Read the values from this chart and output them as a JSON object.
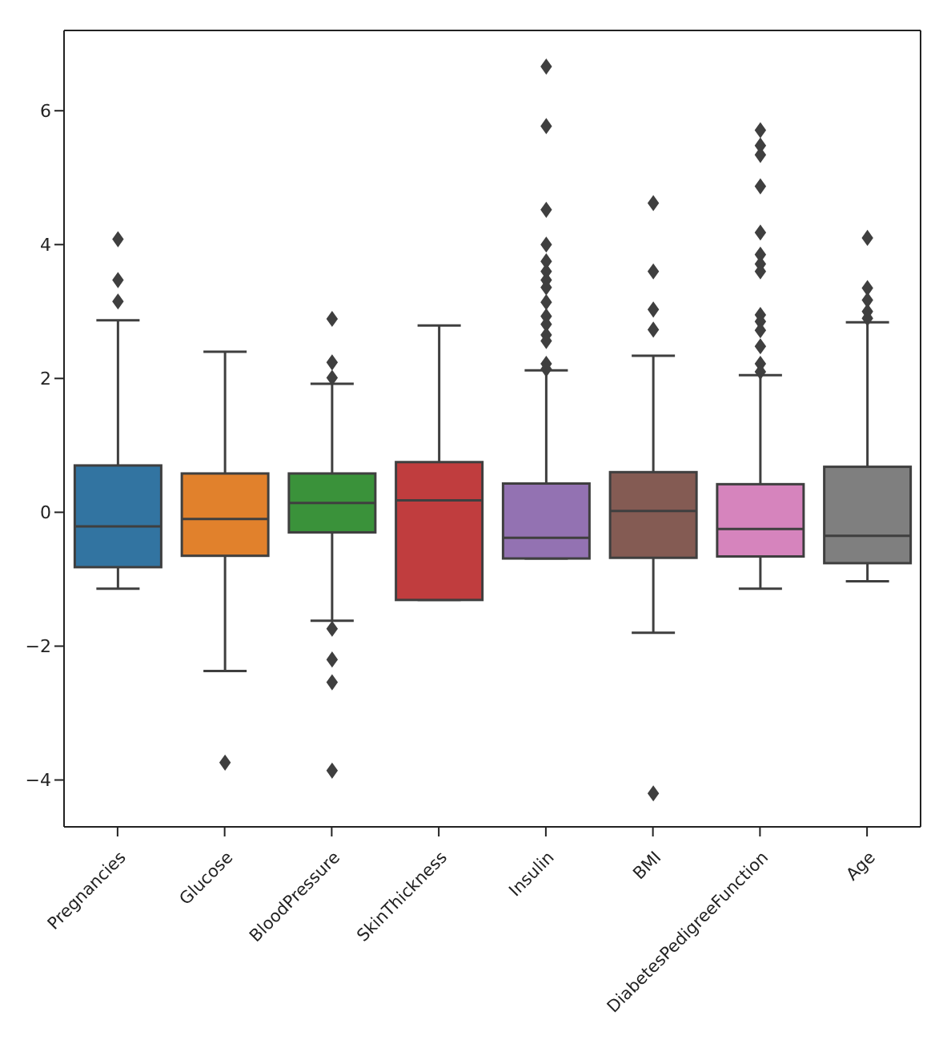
{
  "chart_data": {
    "type": "box",
    "categories": [
      "Pregnancies",
      "Glucose",
      "BloodPressure",
      "SkinThickness",
      "Insulin",
      "BMI",
      "DiabetesPedigreeFunction",
      "Age"
    ],
    "colors": [
      "#3274a1",
      "#e1812c",
      "#3a923a",
      "#c03d3e",
      "#9372b2",
      "#845b53",
      "#d684bd",
      "#7f7f7f"
    ],
    "boxes": [
      {
        "low": -1.14,
        "q1": -0.82,
        "median": -0.21,
        "q3": 0.7,
        "high": 2.87,
        "outliers": [
          4.08,
          3.47,
          3.15
        ]
      },
      {
        "low": -2.37,
        "q1": -0.65,
        "median": -0.1,
        "q3": 0.58,
        "high": 2.4,
        "outliers": [
          -3.74
        ]
      },
      {
        "low": -1.62,
        "q1": -0.3,
        "median": 0.14,
        "q3": 0.58,
        "high": 1.92,
        "outliers": [
          2.89,
          2.24,
          2.01,
          -1.74,
          -2.2,
          -2.54,
          -3.86
        ]
      },
      {
        "low": -1.31,
        "q1": -1.31,
        "median": 0.18,
        "q3": 0.75,
        "high": 2.79
      },
      {
        "low": -0.69,
        "q1": -0.69,
        "median": -0.38,
        "q3": 0.43,
        "high": 2.12,
        "outliers": [
          6.66,
          5.77,
          4.52,
          4.0,
          3.75,
          3.6,
          3.47,
          3.36,
          3.14,
          2.93,
          2.81,
          2.65,
          2.56,
          2.22,
          2.14
        ]
      },
      {
        "low": -1.8,
        "q1": -0.68,
        "median": 0.02,
        "q3": 0.6,
        "high": 2.34,
        "outliers": [
          4.62,
          3.6,
          3.03,
          2.73,
          -4.2
        ]
      },
      {
        "low": -1.14,
        "q1": -0.66,
        "median": -0.25,
        "q3": 0.42,
        "high": 2.05,
        "outliers": [
          5.71,
          5.48,
          5.34,
          4.87,
          4.18,
          3.85,
          3.71,
          3.6,
          2.95,
          2.85,
          2.72,
          2.48,
          2.22,
          2.1
        ]
      },
      {
        "low": -1.03,
        "q1": -0.76,
        "median": -0.35,
        "q3": 0.68,
        "high": 2.84,
        "outliers": [
          4.1,
          3.35,
          3.17,
          3.0,
          2.9
        ]
      }
    ],
    "ylim": [
      -4.7,
      7.2
    ],
    "yticks": [
      {
        "value": -4,
        "label": "−4"
      },
      {
        "value": -2,
        "label": "−2"
      },
      0,
      2,
      4,
      6
    ],
    "marker": "diamond",
    "grid": false
  }
}
